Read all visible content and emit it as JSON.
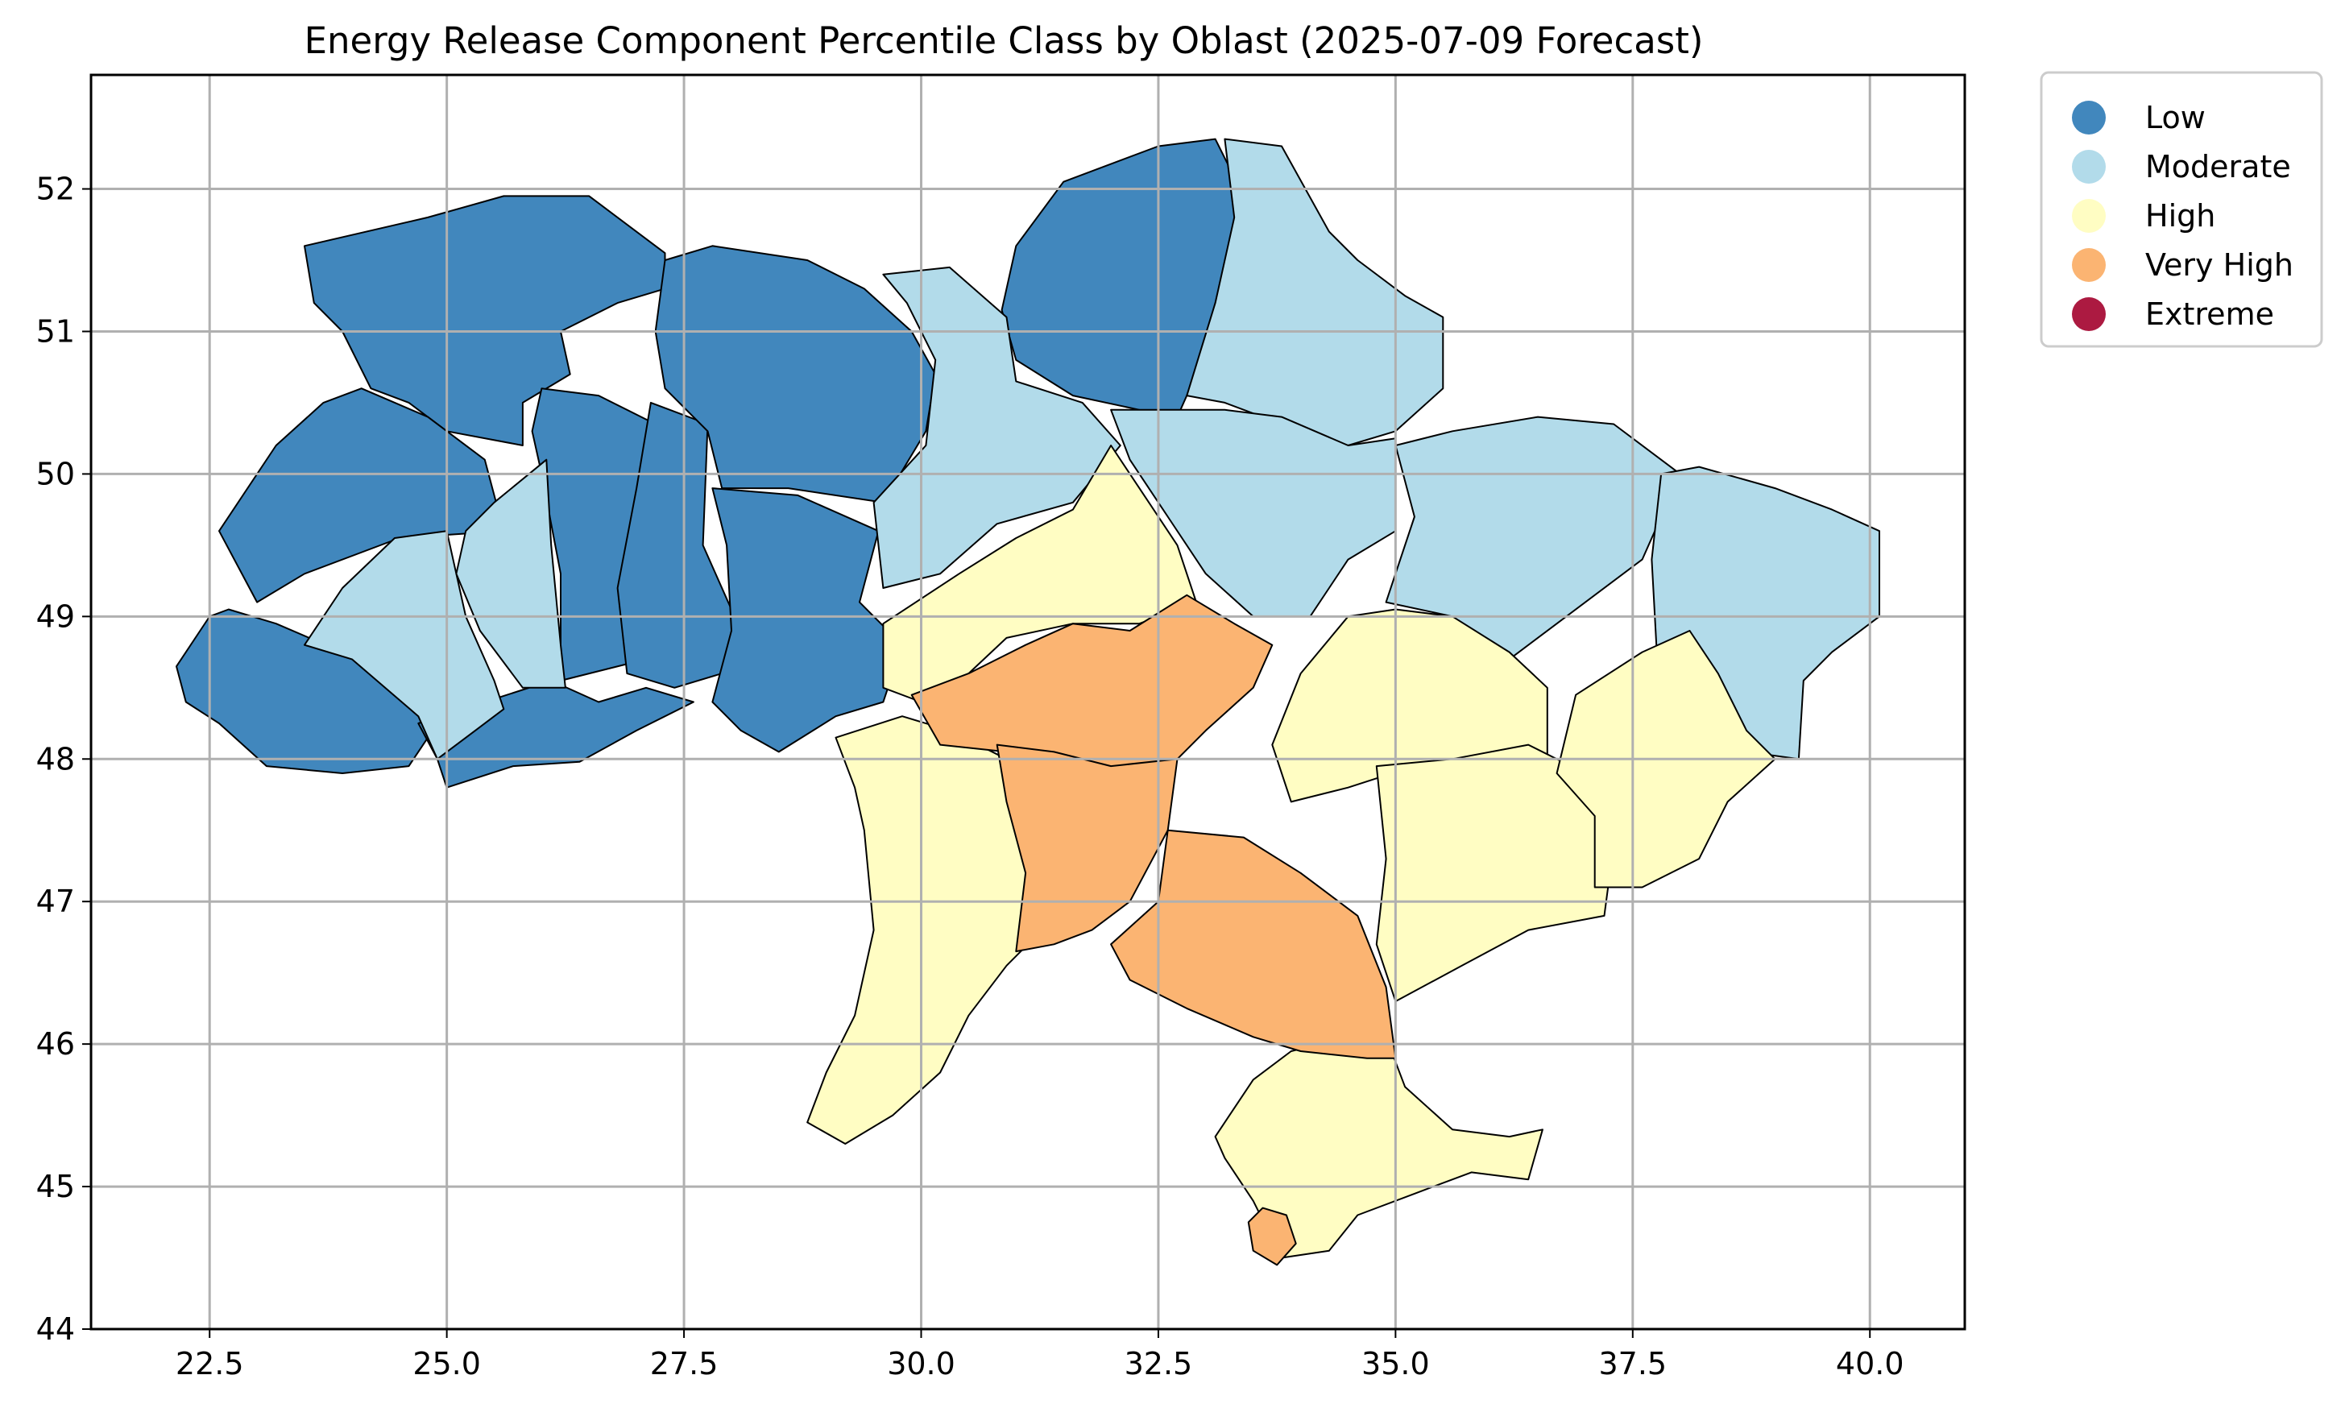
{
  "title": "Energy Release Component Percentile Class by Oblast (2025-07-09 Forecast)",
  "axes": {
    "x_ticks": [
      "22.5",
      "25.0",
      "27.5",
      "30.0",
      "32.5",
      "35.0",
      "37.5",
      "40.0"
    ],
    "y_ticks": [
      "52",
      "51",
      "50",
      "49",
      "48",
      "47",
      "46",
      "45",
      "44"
    ],
    "xlim": [
      21.25,
      41.0
    ],
    "ylim": [
      44.0,
      52.8
    ],
    "grid": true
  },
  "legend": {
    "placement": "outside-top-right",
    "items": [
      {
        "label": "Low",
        "color": "#4187bd"
      },
      {
        "label": "Moderate",
        "color": "#b2dbea"
      },
      {
        "label": "High",
        "color": "#fffdc3"
      },
      {
        "label": "Very High",
        "color": "#fbb472"
      },
      {
        "label": "Extreme",
        "color": "#ac1a41"
      }
    ]
  },
  "classes": {
    "Low": "#4187bd",
    "Moderate": "#b2dbea",
    "High": "#fffdc3",
    "Very High": "#fbb472",
    "Extreme": "#ac1a41"
  },
  "regions": [
    {
      "class": "Low",
      "points": [
        [
          23.5,
          51.6
        ],
        [
          24.8,
          51.8
        ],
        [
          25.6,
          51.95
        ],
        [
          26.5,
          51.95
        ],
        [
          27.3,
          51.55
        ],
        [
          27.3,
          51.3
        ],
        [
          26.8,
          51.2
        ],
        [
          26.2,
          51.0
        ],
        [
          26.3,
          50.7
        ],
        [
          25.8,
          50.5
        ],
        [
          25.8,
          50.2
        ],
        [
          25.0,
          50.3
        ],
        [
          24.6,
          50.5
        ],
        [
          24.2,
          50.6
        ],
        [
          23.9,
          51.0
        ],
        [
          23.6,
          51.2
        ]
      ]
    },
    {
      "class": "Low",
      "points": [
        [
          24.1,
          50.6
        ],
        [
          24.8,
          50.4
        ],
        [
          25.4,
          50.1
        ],
        [
          25.6,
          49.6
        ],
        [
          24.5,
          49.55
        ],
        [
          23.5,
          49.3
        ],
        [
          23.0,
          49.1
        ],
        [
          22.6,
          49.6
        ],
        [
          23.2,
          50.2
        ],
        [
          23.7,
          50.5
        ]
      ]
    },
    {
      "class": "Low",
      "points": [
        [
          22.7,
          49.05
        ],
        [
          23.2,
          48.95
        ],
        [
          23.9,
          48.75
        ],
        [
          24.6,
          48.45
        ],
        [
          24.85,
          48.2
        ],
        [
          24.6,
          47.95
        ],
        [
          23.9,
          47.9
        ],
        [
          23.1,
          47.95
        ],
        [
          22.6,
          48.25
        ],
        [
          22.25,
          48.4
        ],
        [
          22.15,
          48.65
        ],
        [
          22.5,
          49.0
        ]
      ]
    },
    {
      "class": "Low",
      "points": [
        [
          24.7,
          48.25
        ],
        [
          25.4,
          48.4
        ],
        [
          26.1,
          48.55
        ],
        [
          26.6,
          48.4
        ],
        [
          27.1,
          48.5
        ],
        [
          27.6,
          48.4
        ],
        [
          27.0,
          48.2
        ],
        [
          26.4,
          47.98
        ],
        [
          25.7,
          47.95
        ],
        [
          25.0,
          47.8
        ],
        [
          24.9,
          48.0
        ]
      ]
    },
    {
      "class": "Low",
      "points": [
        [
          26.0,
          50.6
        ],
        [
          26.6,
          50.55
        ],
        [
          27.2,
          50.35
        ],
        [
          27.0,
          49.4
        ],
        [
          27.1,
          48.7
        ],
        [
          26.2,
          48.55
        ],
        [
          26.2,
          49.3
        ],
        [
          26.0,
          50.0
        ],
        [
          25.9,
          50.3
        ]
      ]
    },
    {
      "class": "Low",
      "points": [
        [
          27.15,
          50.5
        ],
        [
          27.75,
          50.35
        ],
        [
          27.7,
          49.5
        ],
        [
          28.1,
          48.9
        ],
        [
          27.9,
          48.6
        ],
        [
          27.4,
          48.5
        ],
        [
          26.9,
          48.6
        ],
        [
          26.8,
          49.2
        ],
        [
          27.0,
          49.9
        ]
      ]
    },
    {
      "class": "Low",
      "points": [
        [
          27.3,
          51.5
        ],
        [
          27.8,
          51.6
        ],
        [
          28.8,
          51.5
        ],
        [
          29.4,
          51.3
        ],
        [
          29.9,
          51.0
        ],
        [
          30.15,
          50.7
        ],
        [
          30.05,
          50.3
        ],
        [
          29.6,
          49.8
        ],
        [
          28.6,
          49.9
        ],
        [
          27.9,
          49.9
        ],
        [
          27.75,
          50.3
        ],
        [
          27.3,
          50.6
        ],
        [
          27.2,
          51.0
        ]
      ]
    },
    {
      "class": "Low",
      "points": [
        [
          27.8,
          49.9
        ],
        [
          28.7,
          49.85
        ],
        [
          29.55,
          49.6
        ],
        [
          29.35,
          49.1
        ],
        [
          29.8,
          48.8
        ],
        [
          29.6,
          48.4
        ],
        [
          29.1,
          48.3
        ],
        [
          28.5,
          48.05
        ],
        [
          28.1,
          48.2
        ],
        [
          27.8,
          48.4
        ],
        [
          28.0,
          48.9
        ],
        [
          27.95,
          49.5
        ]
      ]
    },
    {
      "class": "Low",
      "points": [
        [
          31.5,
          52.05
        ],
        [
          32.5,
          52.3
        ],
        [
          33.1,
          52.35
        ],
        [
          33.4,
          51.95
        ],
        [
          33.3,
          51.5
        ],
        [
          33.1,
          51.1
        ],
        [
          32.9,
          50.7
        ],
        [
          32.7,
          50.4
        ],
        [
          32.3,
          50.45
        ],
        [
          31.6,
          50.55
        ],
        [
          31.0,
          50.8
        ],
        [
          30.85,
          51.15
        ],
        [
          31.0,
          51.6
        ]
      ]
    },
    {
      "class": "Moderate",
      "points": [
        [
          29.6,
          51.4
        ],
        [
          30.3,
          51.45
        ],
        [
          30.9,
          51.1
        ],
        [
          31.0,
          50.65
        ],
        [
          31.7,
          50.5
        ],
        [
          32.1,
          50.2
        ],
        [
          31.6,
          49.8
        ],
        [
          30.8,
          49.65
        ],
        [
          30.2,
          49.3
        ],
        [
          29.6,
          49.2
        ],
        [
          29.5,
          49.8
        ],
        [
          30.05,
          50.2
        ],
        [
          30.15,
          50.8
        ],
        [
          29.85,
          51.2
        ]
      ]
    },
    {
      "class": "Moderate",
      "points": [
        [
          33.2,
          52.35
        ],
        [
          33.8,
          52.3
        ],
        [
          34.3,
          51.7
        ],
        [
          34.6,
          51.5
        ],
        [
          35.1,
          51.25
        ],
        [
          35.5,
          51.1
        ],
        [
          35.5,
          50.6
        ],
        [
          35.0,
          50.3
        ],
        [
          34.5,
          50.2
        ],
        [
          33.8,
          50.35
        ],
        [
          33.2,
          50.5
        ],
        [
          32.8,
          50.55
        ],
        [
          33.1,
          51.2
        ],
        [
          33.3,
          51.8
        ]
      ]
    },
    {
      "class": "Moderate",
      "points": [
        [
          32.0,
          50.45
        ],
        [
          32.5,
          50.45
        ],
        [
          33.2,
          50.45
        ],
        [
          33.8,
          50.4
        ],
        [
          34.5,
          50.2
        ],
        [
          35.0,
          50.25
        ],
        [
          35.0,
          49.6
        ],
        [
          34.5,
          49.4
        ],
        [
          34.1,
          49.0
        ],
        [
          33.5,
          49.0
        ],
        [
          33.0,
          49.3
        ],
        [
          32.6,
          49.7
        ],
        [
          32.2,
          50.1
        ]
      ]
    },
    {
      "class": "Moderate",
      "points": [
        [
          35.0,
          50.2
        ],
        [
          35.6,
          50.3
        ],
        [
          36.5,
          50.4
        ],
        [
          37.3,
          50.35
        ],
        [
          38.0,
          50.0
        ],
        [
          37.6,
          49.4
        ],
        [
          36.8,
          49.0
        ],
        [
          36.2,
          48.7
        ],
        [
          35.6,
          49.0
        ],
        [
          34.9,
          49.1
        ],
        [
          35.2,
          49.7
        ]
      ]
    },
    {
      "class": "Moderate",
      "points": [
        [
          37.8,
          50.0
        ],
        [
          38.2,
          50.05
        ],
        [
          39.0,
          49.9
        ],
        [
          39.6,
          49.75
        ],
        [
          40.1,
          49.6
        ],
        [
          40.1,
          49.0
        ],
        [
          39.6,
          48.75
        ],
        [
          39.3,
          48.55
        ],
        [
          39.25,
          48.0
        ],
        [
          38.7,
          48.05
        ],
        [
          38.2,
          48.4
        ],
        [
          37.75,
          48.8
        ],
        [
          37.7,
          49.4
        ]
      ]
    },
    {
      "class": "Moderate",
      "points": [
        [
          23.9,
          49.2
        ],
        [
          24.45,
          49.55
        ],
        [
          25.0,
          49.6
        ],
        [
          25.2,
          49.0
        ],
        [
          25.5,
          48.55
        ],
        [
          25.6,
          48.35
        ],
        [
          25.3,
          48.2
        ],
        [
          24.9,
          48.0
        ],
        [
          24.7,
          48.3
        ],
        [
          24.0,
          48.7
        ],
        [
          23.5,
          48.8
        ]
      ]
    },
    {
      "class": "Moderate",
      "points": [
        [
          25.5,
          49.8
        ],
        [
          26.05,
          50.1
        ],
        [
          26.1,
          49.5
        ],
        [
          26.2,
          48.8
        ],
        [
          26.25,
          48.5
        ],
        [
          25.8,
          48.5
        ],
        [
          25.35,
          48.9
        ],
        [
          25.1,
          49.3
        ],
        [
          25.2,
          49.6
        ]
      ]
    },
    {
      "class": "High",
      "points": [
        [
          29.6,
          48.95
        ],
        [
          30.4,
          49.3
        ],
        [
          31.0,
          49.55
        ],
        [
          31.6,
          49.75
        ],
        [
          32.0,
          50.2
        ],
        [
          32.4,
          49.8
        ],
        [
          32.7,
          49.5
        ],
        [
          32.9,
          49.1
        ],
        [
          32.3,
          48.95
        ],
        [
          31.6,
          48.95
        ],
        [
          30.9,
          48.85
        ],
        [
          30.5,
          48.6
        ],
        [
          30.0,
          48.4
        ],
        [
          29.6,
          48.5
        ]
      ]
    },
    {
      "class": "High",
      "points": [
        [
          29.1,
          48.15
        ],
        [
          29.8,
          48.3
        ],
        [
          30.3,
          48.2
        ],
        [
          30.9,
          48.0
        ],
        [
          31.0,
          47.6
        ],
        [
          31.2,
          47.3
        ],
        [
          31.6,
          46.9
        ],
        [
          31.2,
          46.75
        ],
        [
          30.9,
          46.55
        ],
        [
          30.5,
          46.2
        ],
        [
          30.2,
          45.8
        ],
        [
          29.7,
          45.5
        ],
        [
          29.2,
          45.3
        ],
        [
          28.8,
          45.45
        ],
        [
          29.0,
          45.8
        ],
        [
          29.3,
          46.2
        ],
        [
          29.5,
          46.8
        ],
        [
          29.4,
          47.5
        ],
        [
          29.3,
          47.8
        ]
      ]
    },
    {
      "class": "High",
      "points": [
        [
          34.5,
          49.0
        ],
        [
          35.0,
          49.05
        ],
        [
          35.6,
          49.0
        ],
        [
          36.2,
          48.75
        ],
        [
          36.6,
          48.5
        ],
        [
          36.6,
          48.0
        ],
        [
          35.9,
          48.0
        ],
        [
          35.2,
          47.95
        ],
        [
          34.5,
          47.8
        ],
        [
          33.9,
          47.7
        ],
        [
          33.7,
          48.1
        ],
        [
          34.0,
          48.6
        ]
      ]
    },
    {
      "class": "High",
      "points": [
        [
          34.8,
          47.95
        ],
        [
          35.6,
          48.0
        ],
        [
          36.4,
          48.1
        ],
        [
          37.0,
          47.9
        ],
        [
          37.3,
          47.4
        ],
        [
          37.2,
          46.9
        ],
        [
          36.4,
          46.8
        ],
        [
          35.7,
          46.55
        ],
        [
          35.0,
          46.3
        ],
        [
          34.8,
          46.7
        ],
        [
          34.9,
          47.3
        ]
      ]
    },
    {
      "class": "High",
      "points": [
        [
          36.9,
          48.45
        ],
        [
          37.6,
          48.75
        ],
        [
          38.1,
          48.9
        ],
        [
          38.4,
          48.6
        ],
        [
          38.7,
          48.2
        ],
        [
          39.0,
          48.0
        ],
        [
          38.5,
          47.7
        ],
        [
          38.2,
          47.3
        ],
        [
          37.6,
          47.1
        ],
        [
          37.1,
          47.1
        ],
        [
          37.1,
          47.6
        ],
        [
          36.7,
          47.9
        ]
      ]
    },
    {
      "class": "High",
      "points": [
        [
          33.1,
          45.35
        ],
        [
          33.5,
          45.75
        ],
        [
          33.9,
          45.95
        ],
        [
          34.5,
          46.05
        ],
        [
          34.9,
          46.05
        ],
        [
          35.1,
          45.7
        ],
        [
          35.6,
          45.4
        ],
        [
          36.2,
          45.35
        ],
        [
          36.55,
          45.4
        ],
        [
          36.4,
          45.05
        ],
        [
          35.8,
          45.1
        ],
        [
          35.2,
          44.95
        ],
        [
          34.6,
          44.8
        ],
        [
          34.3,
          44.55
        ],
        [
          33.8,
          44.5
        ],
        [
          33.5,
          44.9
        ],
        [
          33.2,
          45.2
        ]
      ]
    },
    {
      "class": "Very High",
      "points": [
        [
          29.9,
          48.45
        ],
        [
          30.5,
          48.6
        ],
        [
          31.1,
          48.8
        ],
        [
          31.6,
          48.95
        ],
        [
          32.2,
          48.9
        ],
        [
          32.8,
          49.15
        ],
        [
          33.3,
          48.95
        ],
        [
          33.7,
          48.8
        ],
        [
          33.5,
          48.5
        ],
        [
          33.0,
          48.2
        ],
        [
          32.7,
          48.0
        ],
        [
          32.0,
          47.9
        ],
        [
          31.5,
          48.0
        ],
        [
          30.9,
          48.05
        ],
        [
          30.2,
          48.1
        ]
      ]
    },
    {
      "class": "Very High",
      "points": [
        [
          30.8,
          48.1
        ],
        [
          31.4,
          48.05
        ],
        [
          32.0,
          47.95
        ],
        [
          32.7,
          48.0
        ],
        [
          32.6,
          47.5
        ],
        [
          32.2,
          47.0
        ],
        [
          31.8,
          46.8
        ],
        [
          31.4,
          46.7
        ],
        [
          31.0,
          46.65
        ],
        [
          31.1,
          47.2
        ],
        [
          30.9,
          47.7
        ]
      ]
    },
    {
      "class": "Very High",
      "points": [
        [
          32.6,
          47.5
        ],
        [
          33.4,
          47.45
        ],
        [
          34.0,
          47.2
        ],
        [
          34.6,
          46.9
        ],
        [
          34.9,
          46.4
        ],
        [
          35.0,
          45.9
        ],
        [
          34.7,
          45.9
        ],
        [
          34.0,
          45.95
        ],
        [
          33.5,
          46.05
        ],
        [
          32.8,
          46.25
        ],
        [
          32.2,
          46.45
        ],
        [
          32.0,
          46.7
        ],
        [
          32.5,
          47.0
        ]
      ]
    },
    {
      "class": "Very High",
      "points": [
        [
          33.6,
          44.85
        ],
        [
          33.85,
          44.8
        ],
        [
          33.95,
          44.6
        ],
        [
          33.75,
          44.45
        ],
        [
          33.5,
          44.55
        ],
        [
          33.45,
          44.75
        ]
      ]
    }
  ]
}
